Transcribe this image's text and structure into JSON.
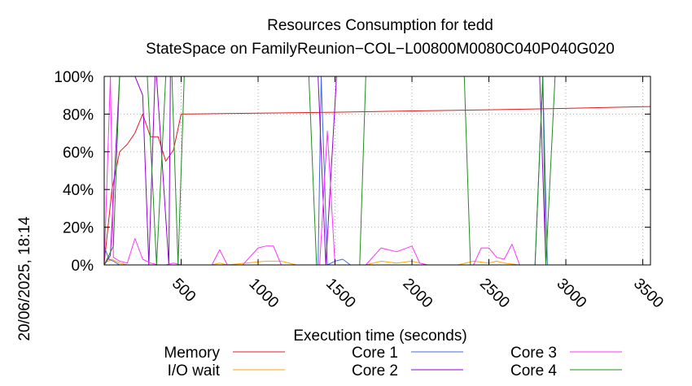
{
  "chart_data": {
    "type": "line",
    "title": "Resources Consumption for tedd",
    "subtitle": "StateSpace on FamilyReunion−COL−L00800M0080C040P040G020",
    "xlabel": "Execution time (seconds)",
    "ylabel": "",
    "side_label": "20/06/2025, 18:14",
    "xlim": [
      0,
      3550
    ],
    "ylim": [
      0,
      100
    ],
    "xticks": [
      500,
      1000,
      1500,
      2000,
      2500,
      3000,
      3500
    ],
    "xtick_labels": [
      "500",
      "1000",
      "1500",
      "2000",
      "2500",
      "3000",
      "3500"
    ],
    "yticks": [
      0,
      20,
      40,
      60,
      80,
      100
    ],
    "ytick_labels": [
      "0%",
      "20%",
      "40%",
      "60%",
      "80%",
      "100%"
    ],
    "grid": true,
    "legend_position": "bottom",
    "series": [
      {
        "name": "Memory",
        "color": "#e41a1c",
        "x": [
          0,
          50,
          100,
          150,
          200,
          250,
          300,
          350,
          400,
          450,
          500,
          1000,
          1500,
          2000,
          2500,
          3000,
          3550
        ],
        "y": [
          1,
          40,
          60,
          64,
          70,
          80,
          68,
          68,
          55,
          61,
          80,
          80.5,
          81,
          81.7,
          82.3,
          83,
          84
        ]
      },
      {
        "name": "I/O wait",
        "color": "#ffa500",
        "x": [
          0,
          50,
          100,
          150,
          400,
          500,
          700,
          750,
          800,
          1050,
          1100,
          1150,
          1250,
          1700,
          1800,
          1900,
          2000,
          2100,
          2300,
          2400,
          2500,
          2550,
          2600,
          2700,
          3550
        ],
        "y": [
          1,
          3,
          1,
          0,
          0,
          0,
          0,
          1,
          0,
          2,
          2,
          2,
          0,
          0,
          2,
          1,
          2,
          0,
          0,
          2,
          1,
          2,
          1,
          0,
          0
        ]
      },
      {
        "name": "Core 1",
        "color": "#4169e1",
        "x": [
          0,
          30,
          60,
          100,
          1390,
          1410,
          1450,
          1500,
          1550,
          1600,
          2800,
          2850,
          2880,
          2900,
          3550
        ],
        "y": [
          10,
          3,
          2,
          0,
          0,
          100,
          0,
          2,
          3,
          0,
          0,
          100,
          0,
          0,
          0
        ]
      },
      {
        "name": "Core 2",
        "color": "#9400d3",
        "x": [
          0,
          40,
          100,
          200,
          250,
          290,
          330,
          340,
          420,
          430,
          500,
          1300,
          1390,
          1440,
          1510,
          1620,
          2380,
          2450,
          2830,
          2870,
          3550
        ],
        "y": [
          0,
          5,
          100,
          100,
          90,
          0,
          100,
          100,
          0,
          100,
          100,
          100,
          100,
          0,
          100,
          100,
          100,
          100,
          100,
          0,
          0
        ]
      },
      {
        "name": "Core 3",
        "color": "#ff33ff",
        "x": [
          0,
          40,
          60,
          100,
          150,
          200,
          250,
          300,
          350,
          400,
          450,
          500,
          700,
          750,
          800,
          900,
          1000,
          1050,
          1100,
          1150,
          1200,
          1400,
          1450,
          1500,
          1550,
          1600,
          1700,
          1800,
          1900,
          2000,
          2050,
          2100,
          2400,
          2450,
          2500,
          2550,
          2600,
          2650,
          2700,
          2750,
          3550
        ],
        "y": [
          0,
          100,
          4,
          2,
          1,
          14,
          3,
          1,
          0,
          0,
          1,
          0,
          0,
          8,
          0,
          0,
          9,
          10,
          10,
          0,
          0,
          0,
          71,
          0,
          0,
          0,
          0,
          9,
          7,
          10,
          1,
          0,
          0,
          9,
          9,
          4,
          3,
          11,
          0,
          0,
          0
        ]
      },
      {
        "name": "Core 4",
        "color": "#228b22",
        "x": [
          0,
          60,
          100,
          280,
          340,
          400,
          440,
          480,
          520,
          1330,
          1380,
          1660,
          1700,
          2340,
          2380,
          2800,
          2850,
          2870,
          2930,
          3550
        ],
        "y": [
          0,
          10,
          100,
          100,
          0,
          100,
          100,
          0,
          100,
          100,
          0,
          0,
          100,
          100,
          0,
          0,
          100,
          0,
          100,
          100
        ]
      }
    ]
  }
}
